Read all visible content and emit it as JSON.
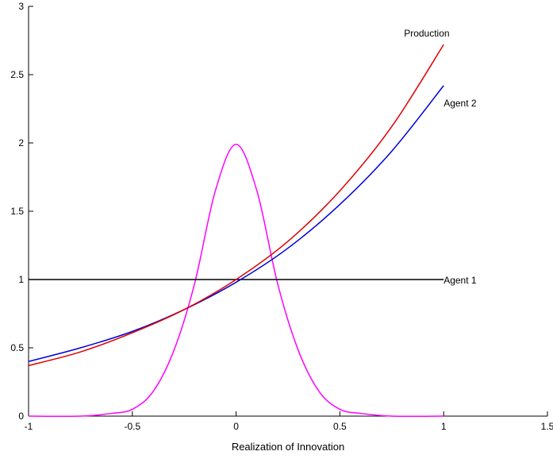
{
  "chart_data": {
    "type": "line",
    "title": "",
    "xlabel": "Realization of Innovation",
    "ylabel": "",
    "xlim": [
      -1,
      1.5
    ],
    "ylim": [
      0,
      3
    ],
    "xticks": [
      -1,
      -0.5,
      0,
      0.5,
      1,
      1.5
    ],
    "xtick_labels": [
      "-1",
      "-0.5",
      "0",
      "0.5",
      "1",
      "1.5"
    ],
    "yticks": [
      0,
      0.5,
      1,
      1.5,
      2,
      2.5,
      3
    ],
    "ytick_labels": [
      "0",
      "0.5",
      "1",
      "1.5",
      "2",
      "2.5",
      "3"
    ],
    "grid": false,
    "legend": "none",
    "series": [
      {
        "name": "Production",
        "color": "#e00000",
        "x": [
          -1,
          -0.75,
          -0.5,
          -0.25,
          0,
          0.25,
          0.5,
          0.75,
          1
        ],
        "y": [
          0.37,
          0.47,
          0.61,
          0.78,
          1.0,
          1.28,
          1.65,
          2.12,
          2.72
        ]
      },
      {
        "name": "Agent 2",
        "color": "#0000e0",
        "x": [
          -1,
          -0.75,
          -0.5,
          -0.25,
          0,
          0.25,
          0.5,
          0.75,
          1
        ],
        "y": [
          0.4,
          0.5,
          0.62,
          0.78,
          0.98,
          1.23,
          1.55,
          1.94,
          2.42
        ]
      },
      {
        "name": "Agent 1",
        "color": "#000000",
        "x": [
          -1,
          -0.75,
          -0.5,
          -0.25,
          0,
          0.25,
          0.5,
          0.75,
          1
        ],
        "y": [
          1,
          1,
          1,
          1,
          1,
          1,
          1,
          1,
          1
        ]
      },
      {
        "name": "",
        "color": "#ff00ff",
        "x": [
          -1,
          -0.75,
          -0.6,
          -0.5,
          -0.4,
          -0.3,
          -0.2,
          -0.1,
          0,
          0.1,
          0.2,
          0.3,
          0.4,
          0.5,
          0.6,
          0.75,
          1
        ],
        "y": [
          0.0,
          0.0,
          0.02,
          0.05,
          0.18,
          0.48,
          0.97,
          1.65,
          1.99,
          1.65,
          0.97,
          0.48,
          0.18,
          0.05,
          0.02,
          0.0,
          0.0
        ]
      }
    ]
  }
}
